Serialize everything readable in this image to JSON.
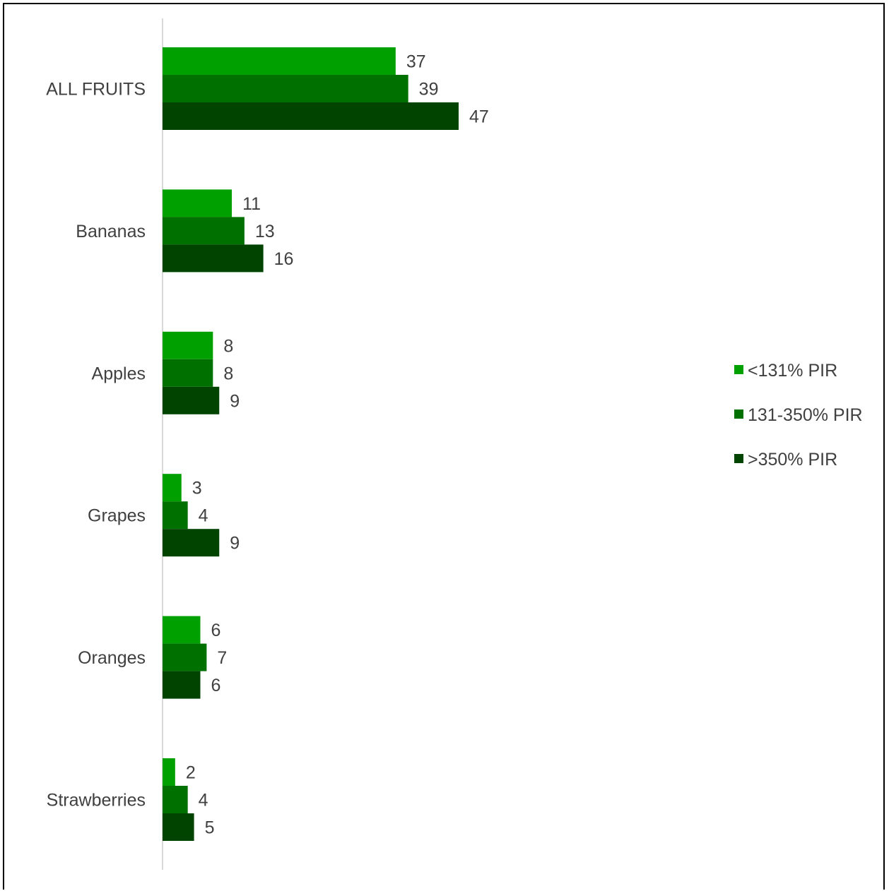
{
  "chart_data": {
    "type": "bar",
    "orientation": "horizontal",
    "categories": [
      "ALL FRUITS",
      "Bananas",
      "Apples",
      "Grapes",
      "Oranges",
      "Strawberries"
    ],
    "series": [
      {
        "name": "<131% PIR",
        "color": "#00a000",
        "values": [
          37,
          11,
          8,
          3,
          6,
          2
        ]
      },
      {
        "name": "131-350% PIR",
        "color": "#007000",
        "values": [
          39,
          13,
          8,
          4,
          7,
          4
        ]
      },
      {
        "name": ">350% PIR",
        "color": "#004400",
        "values": [
          47,
          16,
          9,
          9,
          6,
          5
        ]
      }
    ],
    "title": "",
    "xlabel": "",
    "ylabel": "",
    "xlim": [
      0,
      100
    ],
    "grid": false,
    "legend_position": "right",
    "data_labels": true
  }
}
